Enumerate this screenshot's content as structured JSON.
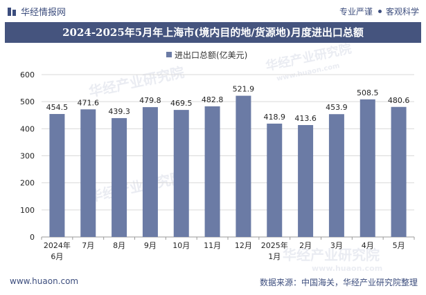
{
  "header": {
    "brand": "华经情报网",
    "tagline_1": "专业严谨",
    "tagline_2": "客观科学"
  },
  "title": "2024-2025年5月年上海市(境内目的地/货源地)月度进出口总额",
  "footer": {
    "website": "www.huaon.com",
    "source": "数据来源：中国海关，华经产业研究院整理"
  },
  "watermark": {
    "text": "华经产业研究院",
    "url": "www.huaon.com"
  },
  "colors": {
    "bar": "#6b7ba5",
    "title_bg": "#45547e",
    "grid": "#d9d9d9"
  },
  "chart_data": {
    "type": "bar",
    "title": "2024-2025年5月年上海市(境内目的地/货源地)月度进出口总额",
    "categories": [
      "2024年\n6月",
      "7月",
      "8月",
      "9月",
      "10月",
      "11月",
      "12月",
      "2025年\n1月",
      "2月",
      "3月",
      "4月",
      "5月"
    ],
    "series": [
      {
        "name": "进出口总额(亿美元)",
        "values": [
          454.5,
          471.6,
          439.3,
          479.8,
          469.5,
          482.8,
          521.9,
          418.9,
          413.6,
          453.9,
          508.5,
          480.6
        ]
      }
    ],
    "ylim": [
      0,
      600
    ],
    "yticks": [
      0,
      100,
      200,
      300,
      400,
      500,
      600
    ],
    "xlabel": "",
    "ylabel": "",
    "legend": "top-center",
    "grid": true
  }
}
